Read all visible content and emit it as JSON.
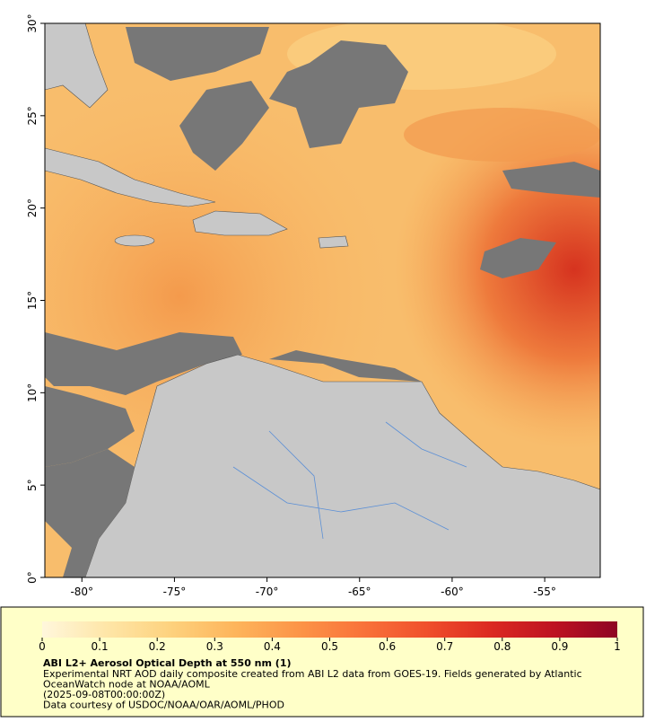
{
  "chart_data": {
    "type": "map",
    "xlim": [
      -82,
      -52
    ],
    "ylim": [
      0,
      30
    ],
    "xticks": [
      {
        "value": -80,
        "label": "-80°"
      },
      {
        "value": -75,
        "label": "-75°"
      },
      {
        "value": -70,
        "label": "-70°"
      },
      {
        "value": -65,
        "label": "-65°"
      },
      {
        "value": -60,
        "label": "-60°"
      },
      {
        "value": -55,
        "label": "-55°"
      }
    ],
    "yticks": [
      {
        "value": 0,
        "label": "0°"
      },
      {
        "value": 5,
        "label": "5°"
      },
      {
        "value": 10,
        "label": "10°"
      },
      {
        "value": 15,
        "label": "15°"
      },
      {
        "value": 20,
        "label": "20°"
      },
      {
        "value": 25,
        "label": "25°"
      },
      {
        "value": 30,
        "label": "30°"
      }
    ],
    "colorbar": {
      "lim": [
        0,
        1
      ],
      "ticks": [
        0,
        0.1,
        0.2,
        0.3,
        0.4,
        0.5,
        0.6,
        0.7,
        0.8,
        0.9,
        1
      ],
      "colors": [
        "#fff7dc",
        "#fee6a8",
        "#fdd27e",
        "#fdb55c",
        "#fc9548",
        "#f9733a",
        "#f0502c",
        "#dc2a22",
        "#be1222",
        "#8e0424"
      ]
    },
    "title": "ABI L2+ Aerosol Optical Depth at 550 nm (1)",
    "caption": [
      "Experimental NRT AOD daily composite created from ABI L2 data from GOES-19. Fields generated by Atlantic",
      "OceanWatch node at NOAA/AOML",
      "(2025-09-08T00:00:00Z)",
      "Data courtesy of USDOC/NOAA/OAR/AOML/PHOD"
    ]
  }
}
